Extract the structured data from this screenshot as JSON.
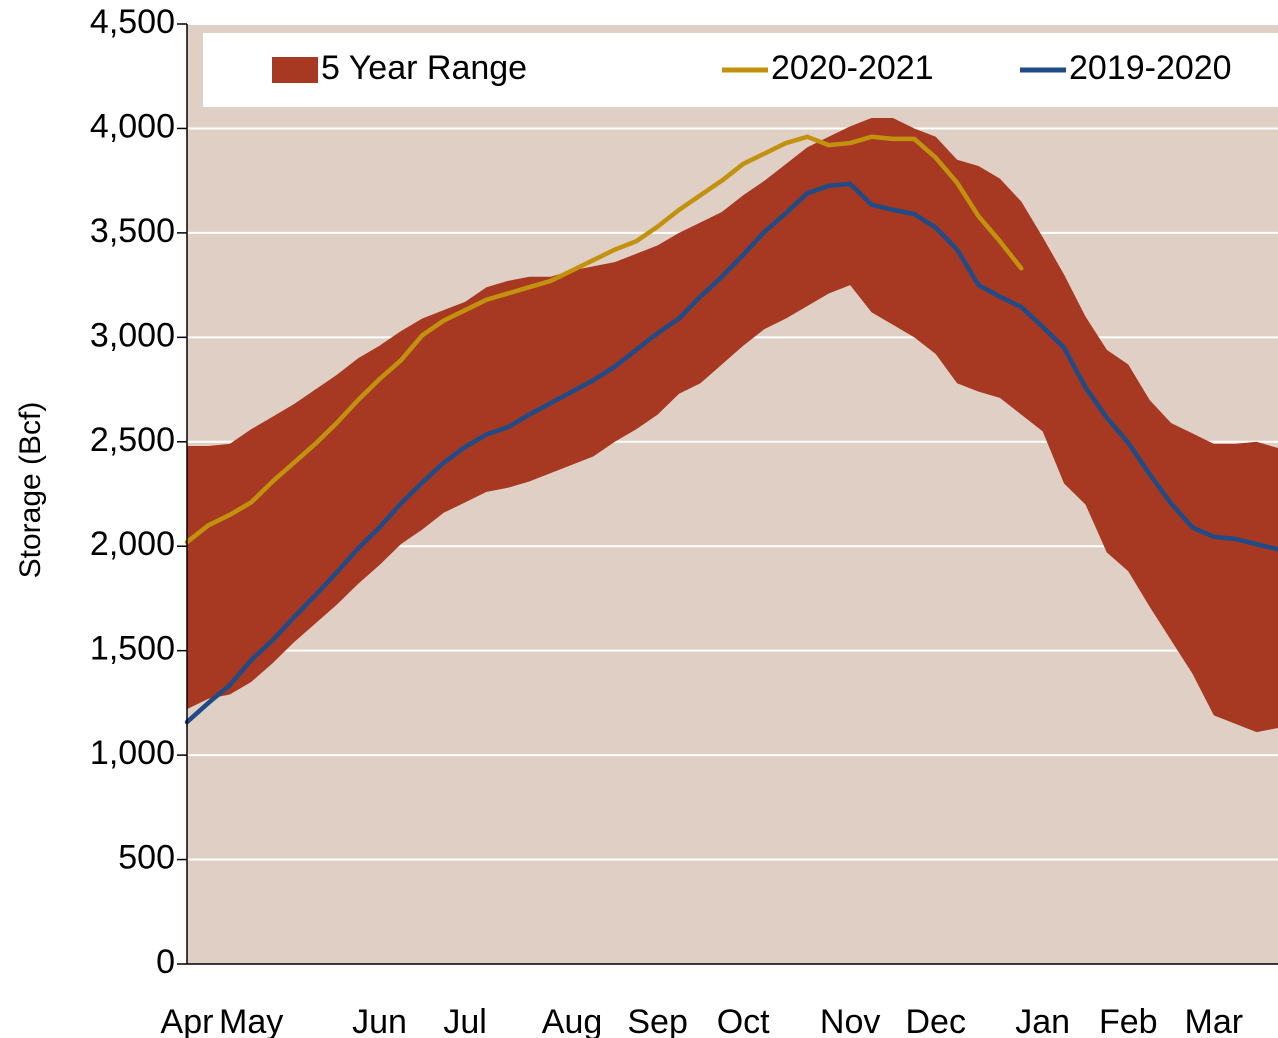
{
  "chart_data": {
    "type": "line",
    "y_label": "Storage (Bcf)",
    "categories": [
      "Apr",
      null,
      null,
      "May",
      null,
      null,
      null,
      null,
      null,
      "Jun",
      null,
      null,
      null,
      "Jul",
      null,
      null,
      null,
      null,
      "Aug",
      null,
      null,
      null,
      "Sep",
      null,
      null,
      null,
      "Oct",
      null,
      null,
      null,
      null,
      "Nov",
      null,
      null,
      null,
      "Dec",
      null,
      null,
      null,
      null,
      "Jan",
      null,
      null,
      null,
      "Feb",
      null,
      null,
      null,
      "Mar",
      null,
      null,
      null
    ],
    "series": [
      {
        "name": "5 Year Range",
        "color": "#a73822",
        "kind": "band",
        "upper": [
          2480,
          2480,
          2490,
          2560,
          2620,
          2680,
          2750,
          2820,
          2900,
          2960,
          3030,
          3090,
          3130,
          3170,
          3240,
          3270,
          3290,
          3290,
          3320,
          3340,
          3360,
          3400,
          3440,
          3500,
          3550,
          3600,
          3680,
          3750,
          3830,
          3910,
          3960,
          4010,
          4050,
          4050,
          4000,
          3960,
          3850,
          3820,
          3760,
          3650,
          3480,
          3300,
          3100,
          2940,
          2870,
          2700,
          2590,
          2540,
          2490,
          2490,
          2500,
          2470
        ],
        "lower": [
          1220,
          1270,
          1290,
          1350,
          1440,
          1540,
          1630,
          1720,
          1820,
          1910,
          2010,
          2080,
          2160,
          2210,
          2260,
          2280,
          2310,
          2350,
          2390,
          2430,
          2500,
          2560,
          2630,
          2730,
          2780,
          2870,
          2960,
          3040,
          3090,
          3150,
          3210,
          3250,
          3120,
          3060,
          3000,
          2920,
          2780,
          2740,
          2710,
          2630,
          2550,
          2300,
          2200,
          1970,
          1880,
          1710,
          1550,
          1390,
          1190,
          1150,
          1110,
          1130
        ]
      },
      {
        "name": "2020-2021",
        "color": "#c2920f",
        "values": [
          2020,
          2100,
          2150,
          2210,
          2310,
          2400,
          2490,
          2590,
          2700,
          2800,
          2890,
          3010,
          3080,
          3130,
          3180,
          3210,
          3240,
          3270,
          3320,
          3370,
          3420,
          3460,
          3530,
          3610,
          3680,
          3750,
          3830,
          3880,
          3930,
          3960,
          3920,
          3930,
          3960,
          3950,
          3950,
          3860,
          3740,
          3580,
          3460,
          3330,
          null,
          null,
          null,
          null,
          null,
          null,
          null,
          null,
          null,
          null,
          null,
          null
        ]
      },
      {
        "name": "2019-2020",
        "color": "#1f4b87",
        "values": [
          1158,
          1250,
          1335,
          1455,
          1550,
          1660,
          1765,
          1875,
          1990,
          2090,
          2205,
          2305,
          2400,
          2475,
          2535,
          2570,
          2630,
          2685,
          2740,
          2795,
          2860,
          2940,
          3020,
          3090,
          3195,
          3290,
          3395,
          3505,
          3595,
          3690,
          3725,
          3735,
          3635,
          3610,
          3590,
          3525,
          3420,
          3250,
          3195,
          3145,
          3050,
          2950,
          2760,
          2615,
          2495,
          2345,
          2205,
          2090,
          2045,
          2035,
          2010,
          1985
        ]
      }
    ],
    "ylim": [
      0,
      4500
    ],
    "yticks": [
      0,
      500,
      {
        "value": 1000,
        "label": "1,000"
      },
      {
        "value": 1500,
        "label": "1,500"
      },
      {
        "value": 2000,
        "label": "2,000"
      },
      {
        "value": 2500,
        "label": "2,500"
      },
      {
        "value": 3000,
        "label": "3,000"
      },
      {
        "value": 3500,
        "label": "3,500"
      },
      {
        "value": 4000,
        "label": "4,000"
      },
      {
        "value": 4500,
        "label": "4,500"
      }
    ],
    "grid": true,
    "plot_background": "#dfcfc4",
    "legend": "top"
  }
}
